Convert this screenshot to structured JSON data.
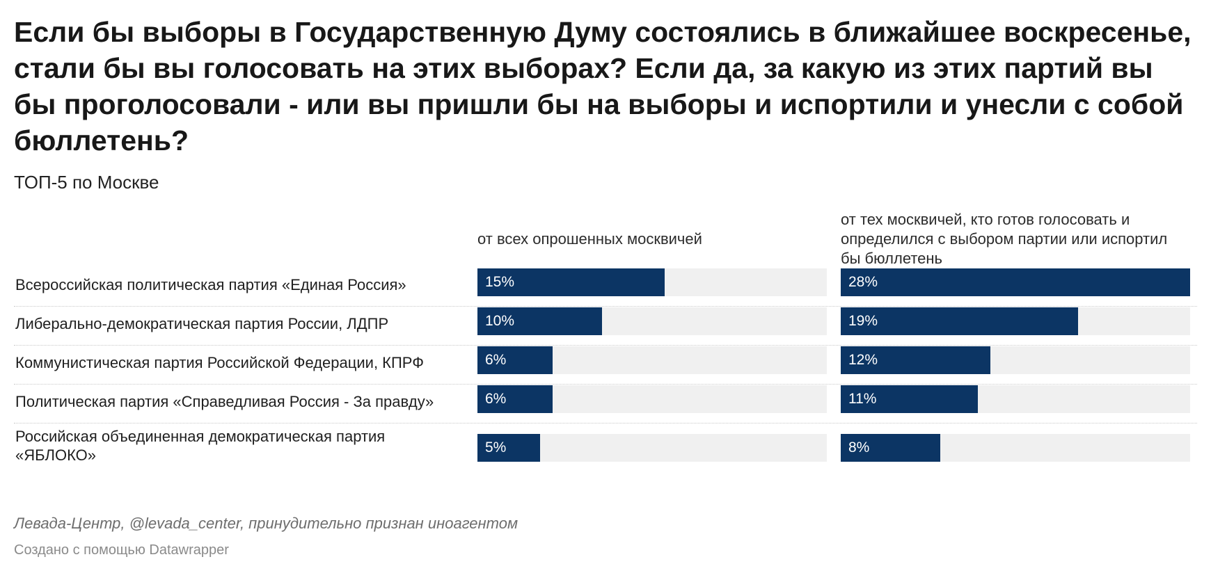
{
  "title": "Если бы выборы в Государственную Думу состоялись в ближайшее воскресенье, стали бы вы голосовать на этих выборах? Если да, за какую из этих партий вы бы проголосовали - или вы пришли бы на выборы и испортили и унесли с собой бюллетень?",
  "subtitle": "ТОП-5 по Москве",
  "source": "Левада-Центр, @levada_center, принудительно признан иноагентом",
  "credit": "Создано с помощью Datawrapper",
  "colors": {
    "bar": "#0c3564",
    "track": "#f0f0f0"
  },
  "chart_data": {
    "type": "bar",
    "title": "Если бы выборы в Государственную Думу состоялись в ближайшее воскресенье, стали бы вы голосовать на этих выборах? Если да, за какую из этих партий вы бы проголосовали - или вы пришли бы на выборы и испортили и унесли с собой бюллетень?",
    "subtitle": "ТОП-5 по Москве",
    "categories": [
      "Всероссийская политическая партия «Единая Россия»",
      "Либерально-демократическая партия России, ЛДПР",
      "Коммунистическая партия Российской Федерации, КПРФ",
      "Политическая партия «Справедливая Россия - За правду»",
      "Российская объединенная демократическая партия «ЯБЛОКО»"
    ],
    "series": [
      {
        "name": "от всех опрошенных москвичей",
        "values": [
          15,
          10,
          6,
          6,
          5
        ],
        "labels": [
          "15%",
          "10%",
          "6%",
          "6%",
          "5%"
        ]
      },
      {
        "name": "от тех москвичей, кто готов голосовать и определился с выбором партии или испортил бы бюллетень",
        "values": [
          28,
          19,
          12,
          11,
          8
        ],
        "labels": [
          "28%",
          "19%",
          "12%",
          "11%",
          "8%"
        ]
      }
    ],
    "ylim": [
      0,
      28
    ]
  }
}
